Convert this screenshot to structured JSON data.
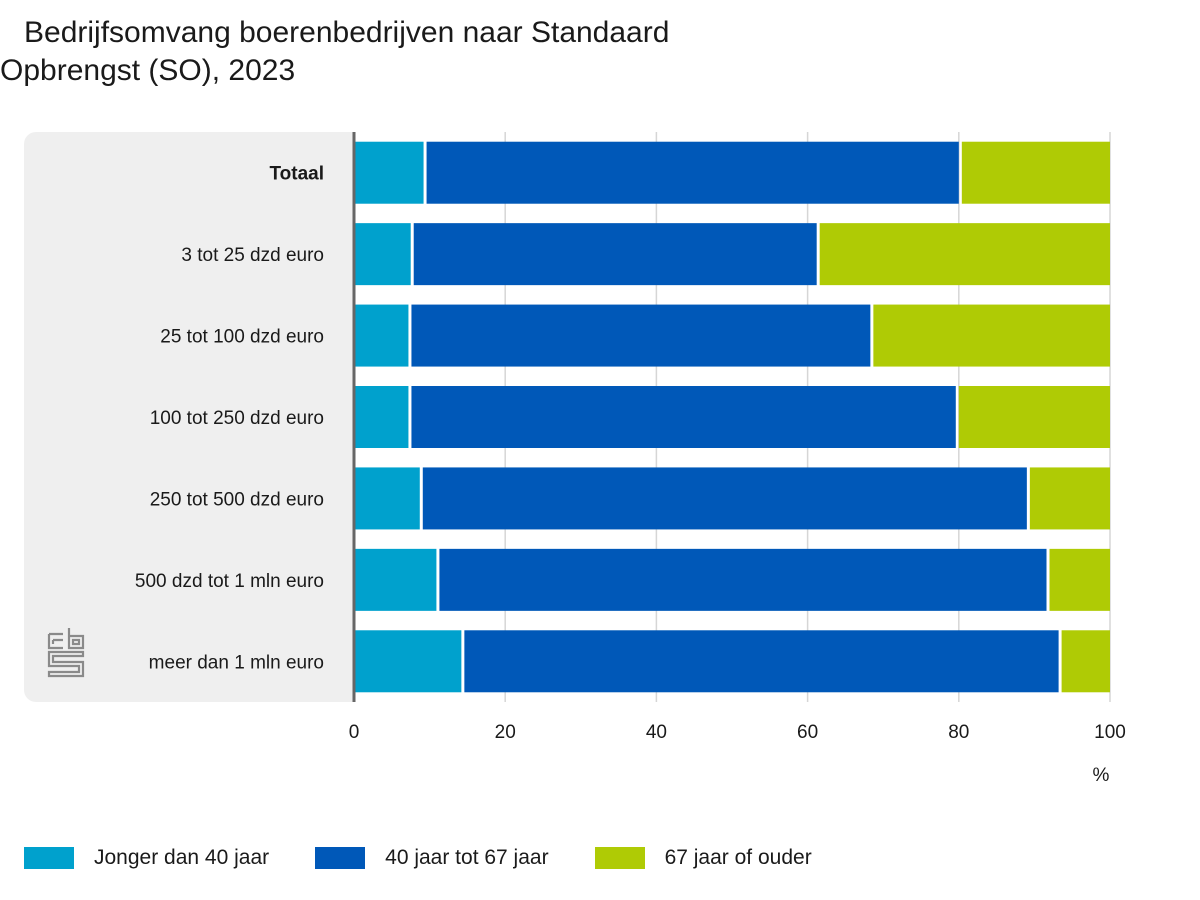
{
  "chart_data": {
    "type": "bar",
    "orientation": "horizontal",
    "stacked": true,
    "title_line1": "Bedrijfsomvang boerenbedrijven naar Standaard",
    "title_line2": "Opbrengst (SO), 2023",
    "xlabel": "%",
    "xlim": [
      0,
      100
    ],
    "xticks": [
      "0",
      "20",
      "40",
      "60",
      "80",
      "100"
    ],
    "xtick_values": [
      0,
      20,
      40,
      60,
      80,
      100
    ],
    "grid": true,
    "legend_position": "bottom",
    "categories": [
      "Totaal",
      "3 tot 25 dzd euro",
      "25 tot 100 dzd euro",
      "100 tot 250 dzd euro",
      "250 tot 500 dzd euro",
      "500 dzd tot 1 mln euro",
      "meer dan 1 mln euro"
    ],
    "bold_categories": [
      "Totaal"
    ],
    "series": [
      {
        "name": "Jonger dan 40 jaar",
        "color": "#00a1cd",
        "values": [
          9.4,
          7.7,
          7.4,
          7.4,
          8.9,
          11.1,
          14.4
        ]
      },
      {
        "name": "40 jaar tot 67 jaar",
        "color": "#0058b8",
        "values": [
          70.8,
          53.7,
          61.1,
          72.4,
          80.3,
          80.7,
          79.0
        ]
      },
      {
        "name": "67 jaar of ouder",
        "color": "#afcb05",
        "values": [
          19.8,
          38.6,
          31.5,
          20.2,
          10.8,
          8.2,
          6.6
        ]
      }
    ]
  },
  "logo": {
    "name": "cbs-logo-icon",
    "text": "cbs"
  }
}
